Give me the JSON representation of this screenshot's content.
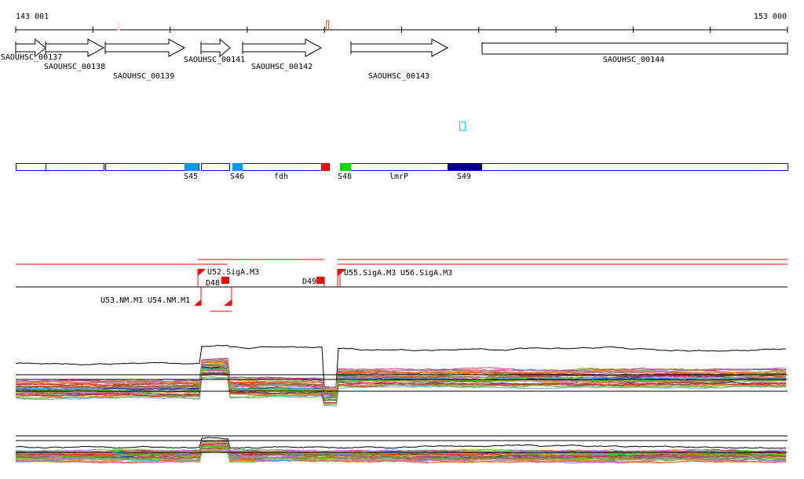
{
  "ruler": {
    "start_label": "143 001",
    "end_label": "153 000"
  },
  "genes": [
    {
      "id": "SAOUHSC_00137"
    },
    {
      "id": "SAOUHSC_00138"
    },
    {
      "id": "SAOUHSC_00139"
    },
    {
      "id": "SAOUHSC_00141"
    },
    {
      "id": "SAOUHSC_00142"
    },
    {
      "id": "SAOUHSC_00143"
    },
    {
      "id": "SAOUHSC_00144"
    }
  ],
  "segments": {
    "labels": [
      "S45",
      "S46",
      "fdh",
      "S48",
      "lmrP",
      "S49"
    ],
    "colors": {
      "outline": "#0000ff",
      "s45": "#0099ff",
      "s46": "#0099ff",
      "red": "#ff0000",
      "s48": "#00dd00",
      "s49": "#000080",
      "cyan": "#00e5ff"
    }
  },
  "features": {
    "labels": [
      "U52.SigA.M3",
      "D48",
      "D49",
      "U55.SigA.M3",
      "U56.SigA.M3",
      "U53.NM.M1",
      "U54.NM.M1"
    ],
    "color": "#ff0000"
  },
  "traces": {
    "count": 40,
    "palette": [
      "#e8702a",
      "#c04080",
      "#7cb342",
      "#5aa9e6",
      "#8a6a3a",
      "#b07cc6",
      "#d62728",
      "#55cc00",
      "#f09060",
      "#1a237e",
      "#9e9d24",
      "#a0522d",
      "#ff7043",
      "#6d4c41",
      "#aed581",
      "#ba68c8"
    ]
  }
}
